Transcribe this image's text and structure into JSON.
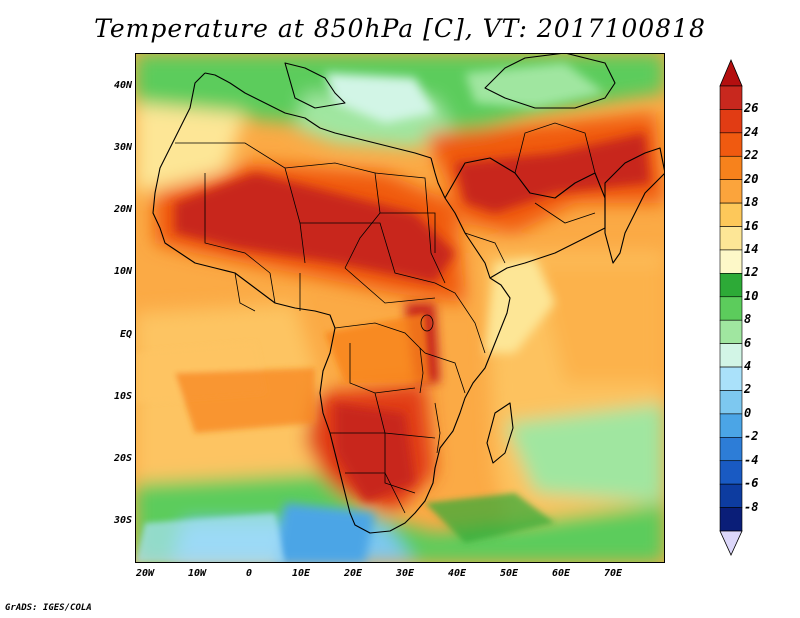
{
  "title": "Temperature at 850hPa [C], VT: 2017100818",
  "credit": "GrADS: IGES/COLA",
  "map": {
    "region": "Africa and Arabian Peninsula",
    "lon_range": [
      -22,
      80
    ],
    "lat_range": [
      -36,
      45
    ],
    "lat_labels": [
      "40N",
      "30N",
      "20N",
      "10N",
      "EQ",
      "10S",
      "20S",
      "30S"
    ],
    "lon_labels": [
      "20W",
      "10W",
      "0",
      "10E",
      "20E",
      "30E",
      "40E",
      "50E",
      "60E",
      "70E"
    ]
  },
  "colorbar": {
    "labels": [
      "26",
      "24",
      "22",
      "20",
      "18",
      "16",
      "14",
      "12",
      "10",
      "8",
      "6",
      "4",
      "2",
      "0",
      "-2",
      "-4",
      "-6",
      "-8"
    ],
    "colors": [
      "#c8281e",
      "#e13c14",
      "#f05a10",
      "#f7821c",
      "#fba43c",
      "#fdc85a",
      "#fde696",
      "#fdf8c8",
      "#2daa37",
      "#5ccc5c",
      "#a0e6a0",
      "#d2f5e6",
      "#aae1fa",
      "#7dc8f0",
      "#4ba5e6",
      "#2d7dd7",
      "#195ac3",
      "#0d3ca0",
      "#0a1e78"
    ],
    "high_arrow_color": "#b40f0f",
    "low_arrow_color": "#dcd7fa"
  }
}
